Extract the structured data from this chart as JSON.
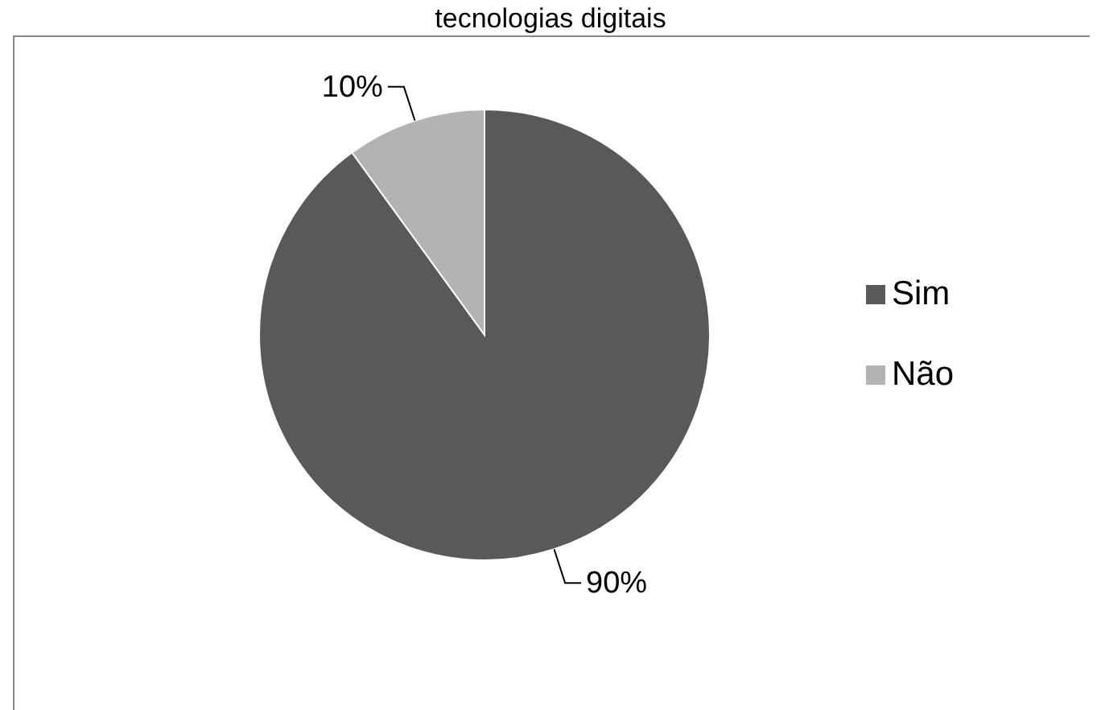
{
  "chart_data": {
    "type": "pie",
    "title": "tecnologias digitais",
    "categories": [
      "Sim",
      "Não"
    ],
    "values": [
      90,
      10
    ],
    "colors": [
      "#595959",
      "#b3b3b3"
    ],
    "value_labels": [
      "90%",
      "10%"
    ],
    "legend": "right"
  }
}
